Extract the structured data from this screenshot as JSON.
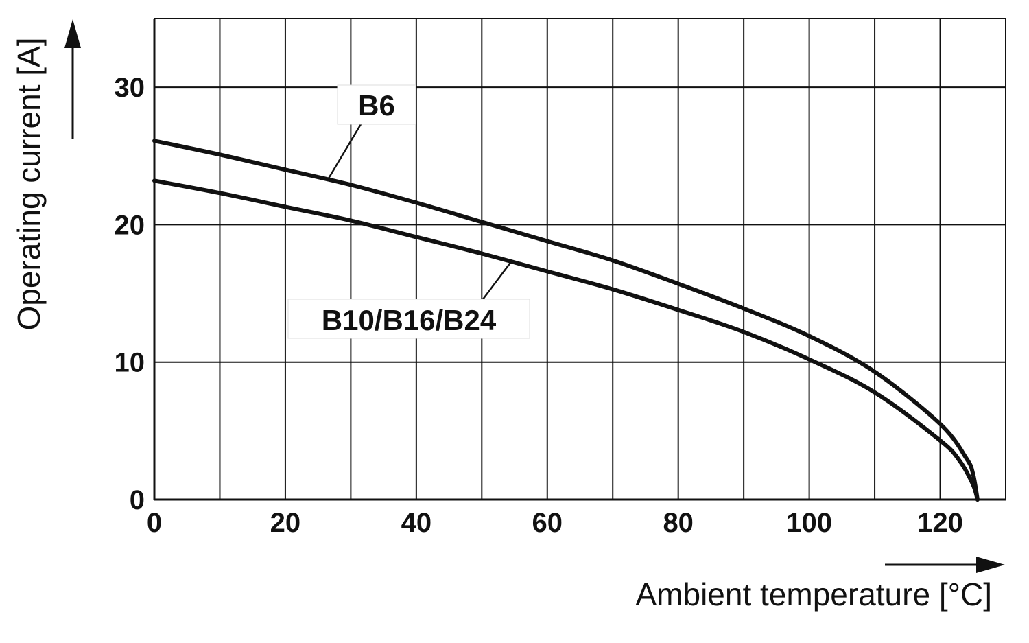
{
  "chart_data": {
    "type": "line",
    "xlabel": "Ambient temperature [°C]",
    "ylabel": "Operating current [A]",
    "xlim": [
      0,
      130
    ],
    "ylim": [
      0,
      35
    ],
    "x_ticks": [
      0,
      20,
      40,
      60,
      80,
      100,
      120
    ],
    "y_ticks": [
      0,
      10,
      20,
      30
    ],
    "x_grid_step": 10,
    "y_grid_step": 10,
    "grid": true,
    "series": [
      {
        "name": "B6",
        "x": [
          0,
          10,
          20,
          30,
          40,
          50,
          60,
          70,
          80,
          90,
          100,
          110,
          120,
          124,
          125,
          125.7
        ],
        "y": [
          26.1,
          25.1,
          24.0,
          22.9,
          21.6,
          20.2,
          18.8,
          17.4,
          15.7,
          13.9,
          11.9,
          9.3,
          5.5,
          3.0,
          1.9,
          0
        ]
      },
      {
        "name": "B10/B16/B24",
        "x": [
          0,
          10,
          20,
          30,
          40,
          50,
          60,
          70,
          80,
          90,
          100,
          110,
          120,
          123,
          125,
          125.7
        ],
        "y": [
          23.2,
          22.3,
          21.3,
          20.3,
          19.1,
          17.9,
          16.6,
          15.3,
          13.8,
          12.2,
          10.2,
          7.8,
          4.3,
          2.8,
          1.1,
          0
        ]
      }
    ]
  },
  "colors": {
    "line": "#111111",
    "grid": "#111111",
    "background": "#ffffff"
  }
}
